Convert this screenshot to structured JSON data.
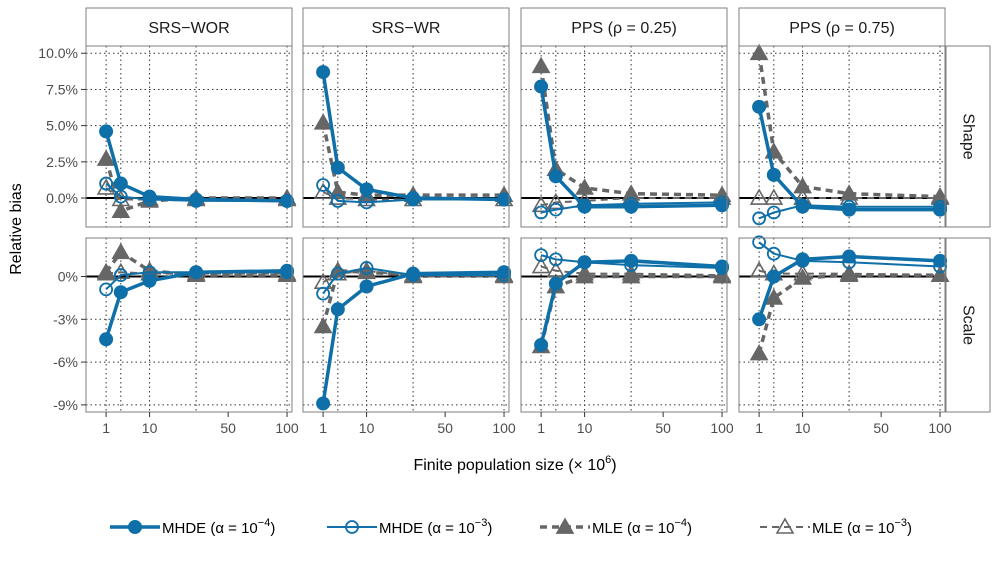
{
  "chart_data": {
    "type": "line",
    "xlabel": "Finite population size",
    "xlabel_suffix": "(× 10",
    "xlabel_exp": "6",
    "xlabel_close": ")",
    "ylabel": "Relative bias",
    "x": [
      1,
      3,
      10,
      30,
      100
    ],
    "x_ticks": [
      1,
      10,
      50,
      100
    ],
    "x_tick_labels": [
      "1",
      "10",
      "50",
      "100"
    ],
    "x_range": [
      0,
      105
    ],
    "x_scale": "sqrt",
    "grid": true,
    "legend_position": "bottom",
    "columns": [
      {
        "label": "SRS−WOR"
      },
      {
        "label": "SRS−WR"
      },
      {
        "label": "PPS (ρ = 0.25)"
      },
      {
        "label": "PPS (ρ = 0.75)"
      }
    ],
    "rows": [
      {
        "label": "Shape",
        "ylim": [
          -0.02,
          0.105
        ],
        "ticks": [
          0.0,
          0.025,
          0.05,
          0.075,
          0.1
        ],
        "tick_labels": [
          "0.0%",
          "2.5%",
          "5.0%",
          "7.5%",
          "10.0%"
        ]
      },
      {
        "label": "Scale",
        "ylim": [
          -0.095,
          0.027
        ],
        "ticks": [
          -0.09,
          -0.06,
          -0.03,
          0.0
        ],
        "tick_labels": [
          "-9%",
          "-6%",
          "-3%",
          "0%"
        ]
      }
    ],
    "legend": [
      {
        "label": "MHDE",
        "exp": "−4"
      },
      {
        "label": "MHDE",
        "exp": "−3"
      },
      {
        "label": "MLE",
        "exp": "−4"
      },
      {
        "label": "MLE",
        "exp": "−3"
      }
    ],
    "legend_prefix": "(α = 10",
    "legend_close": ")",
    "series_styles": [
      {
        "color": "#0f6fa8",
        "marker": "circle-filled",
        "line": "solid",
        "width": 3.5
      },
      {
        "color": "#0f6fa8",
        "marker": "circle-open",
        "line": "solid",
        "width": 2
      },
      {
        "color": "#666666",
        "marker": "triangle-filled",
        "line": "dashed",
        "width": 3.5
      },
      {
        "color": "#666666",
        "marker": "triangle-open",
        "line": "dashed",
        "width": 2
      }
    ],
    "panels": [
      {
        "row": "Shape",
        "column": "SRS−WOR",
        "series": [
          [
            0.046,
            0.01,
            0.001,
            -0.001,
            -0.002
          ],
          [
            0.01,
            0.001,
            -0.001,
            -0.002,
            -0.002
          ],
          [
            0.027,
            -0.009,
            -0.002,
            0.0,
            0.0
          ],
          [
            0.007,
            -0.001,
            -0.001,
            -0.001,
            -0.001
          ]
        ]
      },
      {
        "row": "Shape",
        "column": "SRS−WR",
        "series": [
          [
            0.087,
            0.021,
            0.006,
            0.0,
            -0.001
          ],
          [
            0.009,
            -0.002,
            -0.003,
            -0.001,
            -0.001
          ],
          [
            0.052,
            0.004,
            0.002,
            0.002,
            0.002
          ],
          [
            0.004,
            0.0,
            -0.001,
            -0.001,
            -0.001
          ]
        ]
      },
      {
        "row": "Shape",
        "column": "PPS (ρ = 0.25)",
        "series": [
          [
            0.077,
            0.015,
            -0.006,
            -0.006,
            -0.005
          ],
          [
            -0.01,
            -0.008,
            -0.005,
            -0.004,
            -0.003
          ],
          [
            0.091,
            0.02,
            0.007,
            0.003,
            0.002
          ],
          [
            -0.005,
            -0.003,
            -0.002,
            0.0,
            0.0
          ]
        ]
      },
      {
        "row": "Shape",
        "column": "PPS (ρ = 0.75)",
        "series": [
          [
            0.063,
            0.016,
            -0.006,
            -0.008,
            -0.008
          ],
          [
            -0.014,
            -0.01,
            -0.005,
            -0.006,
            -0.006
          ],
          [
            0.1,
            0.032,
            0.008,
            0.003,
            0.001
          ],
          [
            0.0,
            0.0,
            0.0,
            0.0,
            0.0
          ]
        ]
      },
      {
        "row": "Scale",
        "column": "SRS−WOR",
        "series": [
          [
            -0.044,
            -0.011,
            -0.003,
            0.003,
            0.004
          ],
          [
            -0.009,
            0.001,
            0.003,
            0.003,
            0.003
          ],
          [
            0.003,
            0.017,
            0.004,
            0.001,
            0.001
          ],
          [
            0.002,
            0.003,
            0.002,
            0.002,
            0.002
          ]
        ]
      },
      {
        "row": "Scale",
        "column": "SRS−WR",
        "series": [
          [
            -0.089,
            -0.023,
            -0.007,
            0.002,
            0.003
          ],
          [
            -0.012,
            0.002,
            0.006,
            0.001,
            0.001
          ],
          [
            -0.035,
            0.004,
            0.003,
            0.001,
            0.001
          ],
          [
            -0.004,
            0.002,
            0.004,
            0.0,
            0.0
          ]
        ]
      },
      {
        "row": "Scale",
        "column": "PPS (ρ = 0.25)",
        "series": [
          [
            -0.048,
            -0.005,
            0.01,
            0.011,
            0.007
          ],
          [
            0.015,
            0.012,
            0.01,
            0.008,
            0.006
          ],
          [
            -0.049,
            -0.007,
            0.0,
            0.0,
            0.0
          ],
          [
            0.007,
            0.004,
            0.002,
            0.002,
            0.001
          ]
        ]
      },
      {
        "row": "Scale",
        "column": "PPS (ρ = 0.75)",
        "series": [
          [
            -0.03,
            0.0,
            0.012,
            0.014,
            0.011
          ],
          [
            0.024,
            0.016,
            0.011,
            0.01,
            0.007
          ],
          [
            -0.054,
            -0.015,
            -0.001,
            0.001,
            0.001
          ],
          [
            0.004,
            0.002,
            0.002,
            0.002,
            0.001
          ]
        ]
      }
    ]
  }
}
